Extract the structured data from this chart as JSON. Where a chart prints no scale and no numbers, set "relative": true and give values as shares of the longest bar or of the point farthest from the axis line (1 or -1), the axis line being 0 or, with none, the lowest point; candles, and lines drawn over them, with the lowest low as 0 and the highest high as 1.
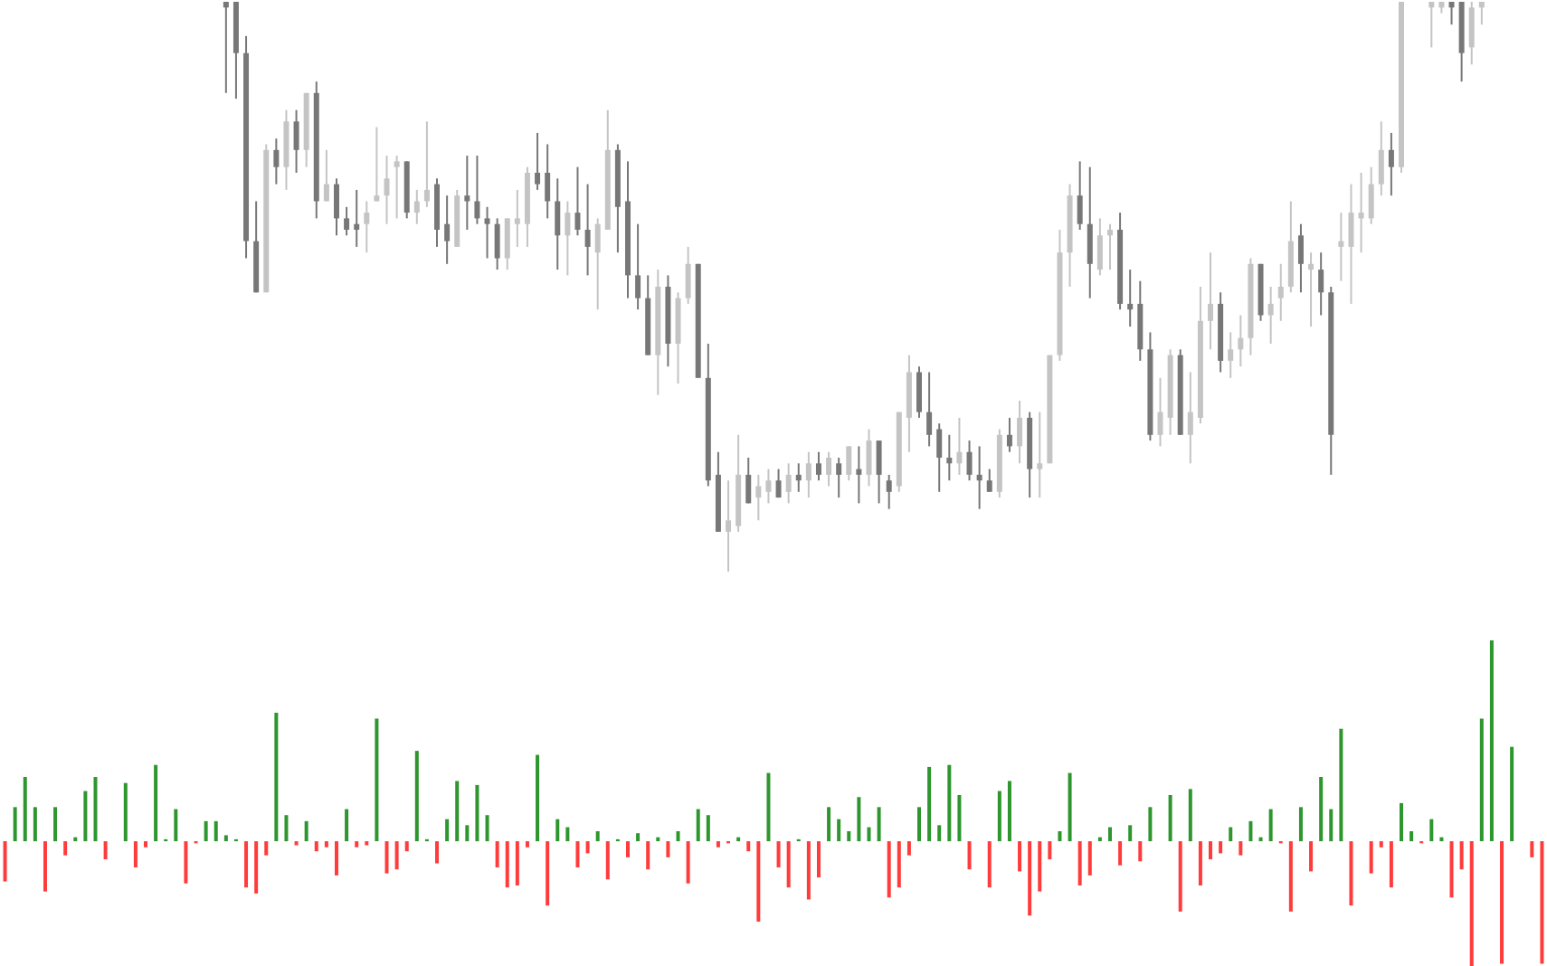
{
  "chart_data": [
    {
      "type": "candlestick",
      "relative": true,
      "categories": [
        null,
        null,
        null,
        null,
        null,
        null,
        null,
        null,
        null,
        null,
        null,
        null,
        null,
        null,
        null,
        null,
        null,
        null,
        null,
        null,
        null,
        null,
        null,
        null,
        null,
        null,
        null,
        null,
        null,
        null,
        null,
        null,
        null,
        null,
        null,
        null,
        null,
        null,
        null,
        null,
        null,
        null,
        null,
        null,
        null,
        null,
        null,
        null,
        null,
        null,
        null,
        null,
        null,
        null,
        null,
        null,
        null,
        null,
        null,
        null,
        null,
        null,
        null,
        null,
        null,
        null,
        null,
        null,
        null,
        null,
        null,
        null,
        null,
        null,
        null,
        null,
        null,
        null,
        null,
        null,
        null,
        null,
        null,
        null,
        null,
        null,
        null,
        null,
        null,
        null,
        null,
        null,
        null,
        null,
        null,
        null,
        null,
        null,
        null,
        null,
        null,
        null,
        null,
        null,
        null,
        null,
        null,
        null,
        null,
        null,
        null,
        null,
        null,
        null,
        null,
        null,
        null,
        null,
        null,
        null,
        null,
        null,
        null,
        null,
        null,
        null,
        null,
        null,
        null,
        null,
        null,
        null,
        null,
        null,
        null,
        null,
        null,
        null,
        null,
        null,
        null,
        null,
        null,
        null,
        null,
        null,
        null,
        null,
        null,
        null,
        null,
        null,
        null,
        null
      ],
      "ohlc": [
        null,
        null,
        null,
        null,
        null,
        null,
        null,
        null,
        null,
        null,
        null,
        null,
        null,
        null,
        null,
        null,
        null,
        null,
        null,
        null,
        null,
        null,
        [
          1,
          1,
          0.84,
          0.99
        ],
        [
          1,
          1,
          0.83,
          0.91
        ],
        [
          0.91,
          0.94,
          0.55,
          0.58
        ],
        [
          0.58,
          0.65,
          0.49,
          0.49
        ],
        [
          0.49,
          0.75,
          0.49,
          0.74
        ],
        [
          0.74,
          0.76,
          0.68,
          0.71
        ],
        [
          0.71,
          0.81,
          0.67,
          0.79
        ],
        [
          0.79,
          0.81,
          0.7,
          0.74
        ],
        [
          0.74,
          0.84,
          0.71,
          0.84
        ],
        [
          0.84,
          0.86,
          0.62,
          0.65
        ],
        [
          0.65,
          0.74,
          0.65,
          0.68
        ],
        [
          0.68,
          0.69,
          0.59,
          0.62
        ],
        [
          0.62,
          0.64,
          0.59,
          0.6
        ],
        [
          0.61,
          0.67,
          0.57,
          0.6
        ],
        [
          0.61,
          0.65,
          0.56,
          0.63
        ],
        [
          0.65,
          0.78,
          0.65,
          0.66
        ],
        [
          0.66,
          0.73,
          0.61,
          0.69
        ],
        [
          0.71,
          0.73,
          0.62,
          0.72
        ],
        [
          0.72,
          0.72,
          0.62,
          0.63
        ],
        [
          0.63,
          0.67,
          0.61,
          0.65
        ],
        [
          0.65,
          0.79,
          0.64,
          0.67
        ],
        [
          0.68,
          0.69,
          0.57,
          0.6
        ],
        [
          0.61,
          0.66,
          0.54,
          0.58
        ],
        [
          0.57,
          0.67,
          0.57,
          0.66
        ],
        [
          0.66,
          0.73,
          0.6,
          0.65
        ],
        [
          0.65,
          0.73,
          0.61,
          0.62
        ],
        [
          0.62,
          0.64,
          0.55,
          0.61
        ],
        [
          0.61,
          0.62,
          0.53,
          0.55
        ],
        [
          0.55,
          0.62,
          0.53,
          0.62
        ],
        [
          0.61,
          0.67,
          0.57,
          0.62
        ],
        [
          0.61,
          0.71,
          0.57,
          0.7
        ],
        [
          0.7,
          0.77,
          0.67,
          0.68
        ],
        [
          0.7,
          0.75,
          0.62,
          0.65
        ],
        [
          0.65,
          0.69,
          0.53,
          0.59
        ],
        [
          0.59,
          0.65,
          0.52,
          0.63
        ],
        [
          0.63,
          0.71,
          0.59,
          0.6
        ],
        [
          0.6,
          0.68,
          0.52,
          0.57
        ],
        [
          0.56,
          0.62,
          0.46,
          0.61
        ],
        [
          0.6,
          0.81,
          0.6,
          0.74
        ],
        [
          0.74,
          0.75,
          0.56,
          0.64
        ],
        [
          0.65,
          0.72,
          0.48,
          0.52
        ],
        [
          0.52,
          0.61,
          0.46,
          0.48
        ],
        [
          0.48,
          0.52,
          0.38,
          0.38
        ],
        [
          0.38,
          0.53,
          0.31,
          0.5
        ],
        [
          0.5,
          0.52,
          0.36,
          0.4
        ],
        [
          0.4,
          0.49,
          0.33,
          0.48
        ],
        [
          0.48,
          0.57,
          0.47,
          0.54
        ],
        [
          0.54,
          0.54,
          0.34,
          0.34
        ],
        [
          0.34,
          0.4,
          0.15,
          0.16
        ],
        [
          0.17,
          0.21,
          0.07,
          0.07
        ],
        [
          0.07,
          0.16,
          0,
          0.09
        ],
        [
          0.08,
          0.24,
          0.07,
          0.17
        ],
        [
          0.17,
          0.2,
          0.12,
          0.12
        ],
        [
          0.13,
          0.17,
          0.09,
          0.15
        ],
        [
          0.14,
          0.18,
          0.12,
          0.16
        ],
        [
          0.16,
          0.18,
          0.13,
          0.13
        ],
        [
          0.14,
          0.19,
          0.12,
          0.17
        ],
        [
          0.17,
          0.19,
          0.14,
          0.16
        ],
        [
          0.16,
          0.21,
          0.13,
          0.19
        ],
        [
          0.19,
          0.21,
          0.16,
          0.17
        ],
        [
          0.17,
          0.21,
          0.15,
          0.2
        ],
        [
          0.19,
          0.2,
          0.13,
          0.17
        ],
        [
          0.17,
          0.22,
          0.16,
          0.22
        ],
        [
          0.18,
          0.22,
          0.12,
          0.17
        ],
        [
          0.17,
          0.25,
          0.15,
          0.23
        ],
        [
          0.23,
          0.23,
          0.12,
          0.17
        ],
        [
          0.16,
          0.17,
          0.11,
          0.14
        ],
        [
          0.15,
          0.28,
          0.14,
          0.28
        ],
        [
          0.27,
          0.38,
          0.21,
          0.35
        ],
        [
          0.35,
          0.36,
          0.27,
          0.28
        ],
        [
          0.28,
          0.35,
          0.22,
          0.24
        ],
        [
          0.25,
          0.26,
          0.14,
          0.2
        ],
        [
          0.2,
          0.24,
          0.16,
          0.19
        ],
        [
          0.19,
          0.27,
          0.17,
          0.21
        ],
        [
          0.21,
          0.23,
          0.16,
          0.17
        ],
        [
          0.17,
          0.22,
          0.11,
          0.16
        ],
        [
          0.16,
          0.18,
          0.14,
          0.14
        ],
        [
          0.14,
          0.25,
          0.13,
          0.24
        ],
        [
          0.24,
          0.27,
          0.21,
          0.22
        ],
        [
          0.22,
          0.3,
          0.19,
          0.27
        ],
        [
          0.27,
          0.28,
          0.13,
          0.18
        ],
        [
          0.18,
          0.28,
          0.13,
          0.19
        ],
        [
          0.19,
          0.38,
          0.19,
          0.38
        ],
        [
          0.38,
          0.6,
          0.37,
          0.56
        ],
        [
          0.56,
          0.68,
          0.5,
          0.66
        ],
        [
          0.66,
          0.72,
          0.6,
          0.61
        ],
        [
          0.61,
          0.71,
          0.48,
          0.54
        ],
        [
          0.53,
          0.62,
          0.52,
          0.59
        ],
        [
          0.59,
          0.61,
          0.53,
          0.6
        ],
        [
          0.6,
          0.63,
          0.46,
          0.47
        ],
        [
          0.47,
          0.53,
          0.43,
          0.46
        ],
        [
          0.47,
          0.51,
          0.37,
          0.39
        ],
        [
          0.39,
          0.42,
          0.23,
          0.24
        ],
        [
          0.24,
          0.34,
          0.22,
          0.28
        ],
        [
          0.27,
          0.39,
          0.24,
          0.38
        ],
        [
          0.38,
          0.39,
          0.24,
          0.24
        ],
        [
          0.24,
          0.35,
          0.19,
          0.28
        ],
        [
          0.27,
          0.5,
          0.26,
          0.44
        ],
        [
          0.44,
          0.56,
          0.39,
          0.47
        ],
        [
          0.47,
          0.49,
          0.35,
          0.37
        ],
        [
          0.37,
          0.42,
          0.34,
          0.39
        ],
        [
          0.39,
          0.45,
          0.36,
          0.41
        ],
        [
          0.41,
          0.55,
          0.38,
          0.54
        ],
        [
          0.54,
          0.54,
          0.44,
          0.45
        ],
        [
          0.45,
          0.5,
          0.4,
          0.47
        ],
        [
          0.48,
          0.54,
          0.44,
          0.5
        ],
        [
          0.5,
          0.65,
          0.49,
          0.58
        ],
        [
          0.59,
          0.61,
          0.49,
          0.54
        ],
        [
          0.53,
          0.56,
          0.43,
          0.54
        ],
        [
          0.53,
          0.56,
          0.45,
          0.49
        ],
        [
          0.49,
          0.5,
          0.17,
          0.24
        ],
        [
          0.57,
          0.63,
          0.51,
          0.58
        ],
        [
          0.57,
          0.68,
          0.47,
          0.63
        ],
        [
          0.62,
          0.7,
          0.56,
          0.63
        ],
        [
          0.62,
          0.71,
          0.61,
          0.68
        ],
        [
          0.68,
          0.79,
          0.66,
          0.74
        ],
        [
          0.74,
          0.77,
          0.66,
          0.71
        ],
        [
          0.71,
          1,
          0.7,
          1
        ],
        null,
        null,
        [
          0.99,
          1,
          0.92,
          1
        ],
        [
          0.99,
          1,
          0.98,
          1
        ],
        [
          1,
          1,
          0.96,
          0.99
        ],
        [
          1,
          1,
          0.86,
          0.91
        ],
        [
          0.92,
          1,
          0.89,
          0.99
        ],
        [
          0.99,
          1,
          0.96,
          1
        ],
        null,
        null,
        null,
        null,
        null,
        null
      ],
      "colors": [
        null,
        null,
        null,
        null,
        null,
        null,
        null,
        null,
        null,
        null,
        null,
        null,
        null,
        null,
        null,
        null,
        null,
        null,
        null,
        null,
        null,
        null,
        "#777777",
        "#777777",
        "#777777",
        "#777777",
        "#c4c4c4",
        "#777777",
        "#c4c4c4",
        "#777777",
        "#c4c4c4",
        "#777777",
        "#c4c4c4",
        "#777777",
        "#777777",
        "#777777",
        "#c4c4c4",
        "#c4c4c4",
        "#c4c4c4",
        "#c4c4c4",
        "#777777",
        "#c4c4c4",
        "#c4c4c4",
        "#777777",
        "#777777",
        "#c4c4c4",
        "#777777",
        "#777777",
        "#777777",
        "#777777",
        "#c4c4c4",
        "#c4c4c4",
        "#c4c4c4",
        "#777777",
        "#777777",
        "#777777",
        "#c4c4c4",
        "#777777",
        "#777777",
        "#c4c4c4",
        "#c4c4c4",
        "#777777",
        "#777777",
        "#777777",
        "#777777",
        "#c4c4c4",
        "#777777",
        "#c4c4c4",
        "#c4c4c4",
        "#777777",
        "#777777",
        "#777777",
        "#c4c4c4",
        "#c4c4c4",
        "#777777",
        "#c4c4c4",
        "#c4c4c4",
        "#777777",
        "#c4c4c4",
        "#777777",
        "#c4c4c4",
        "#777777",
        "#c4c4c4",
        "#777777",
        "#c4c4c4",
        "#777777",
        "#c4c4c4",
        "#777777",
        "#777777",
        "#c4c4c4",
        "#c4c4c4",
        "#777777",
        "#777777",
        "#777777",
        "#777777",
        "#c4c4c4",
        "#777777",
        "#777777",
        "#777777",
        "#c4c4c4",
        "#777777",
        "#c4c4c4",
        "#777777",
        "#c4c4c4",
        "#c4c4c4",
        "#c4c4c4",
        "#c4c4c4",
        "#777777",
        "#777777",
        "#c4c4c4",
        "#c4c4c4",
        "#777777",
        "#777777",
        "#777777",
        "#777777",
        "#c4c4c4",
        "#c4c4c4",
        "#777777",
        "#c4c4c4",
        "#c4c4c4",
        "#c4c4c4",
        "#777777",
        "#c4c4c4",
        "#c4c4c4",
        "#c4c4c4",
        "#777777",
        "#c4c4c4",
        "#c4c4c4",
        "#c4c4c4",
        "#777777",
        "#c4c4c4",
        "#777777",
        "#777777",
        "#c4c4c4",
        "#c4c4c4",
        "#c4c4c4",
        "#c4c4c4",
        "#c4c4c4",
        "#777777",
        "#c4c4c4",
        null,
        null,
        "#c4c4c4",
        "#c4c4c4",
        "#777777",
        "#777777",
        "#c4c4c4",
        "#c4c4c4",
        null,
        null,
        null,
        null,
        null,
        null
      ]
    },
    {
      "type": "bar",
      "relative": true,
      "categories": [
        null,
        null,
        null,
        null,
        null,
        null,
        null,
        null,
        null,
        null,
        null,
        null,
        null,
        null,
        null,
        null,
        null,
        null,
        null,
        null,
        null,
        null,
        null,
        null,
        null,
        null,
        null,
        null,
        null,
        null,
        null,
        null,
        null,
        null,
        null,
        null,
        null,
        null,
        null,
        null,
        null,
        null,
        null,
        null,
        null,
        null,
        null,
        null,
        null,
        null,
        null,
        null,
        null,
        null,
        null,
        null,
        null,
        null,
        null,
        null,
        null,
        null,
        null,
        null,
        null,
        null,
        null,
        null,
        null,
        null,
        null,
        null,
        null,
        null,
        null,
        null,
        null,
        null,
        null,
        null,
        null,
        null,
        null,
        null,
        null,
        null,
        null,
        null,
        null,
        null,
        null,
        null,
        null,
        null,
        null,
        null,
        null,
        null,
        null,
        null,
        null,
        null,
        null,
        null,
        null,
        null,
        null,
        null,
        null,
        null,
        null,
        null,
        null,
        null,
        null,
        null,
        null,
        null,
        null,
        null,
        null,
        null,
        null,
        null,
        null,
        null,
        null,
        null,
        null,
        null,
        null,
        null,
        null,
        null,
        null,
        null,
        null,
        null,
        null,
        null,
        null,
        null,
        null,
        null,
        null,
        null,
        null,
        null,
        null,
        null,
        null,
        null,
        null,
        null
      ],
      "series": [
        {
          "color": "#2e962e",
          "values": [
            null,
            0.17,
            0.32,
            0.17,
            null,
            0.17,
            null,
            0.02,
            0.25,
            0.32,
            null,
            null,
            0.29,
            null,
            null,
            0.38,
            0.01,
            0.16,
            null,
            null,
            0.1,
            0.1,
            0.03,
            0.01,
            null,
            null,
            null,
            0.64,
            0.13,
            null,
            0.1,
            null,
            null,
            null,
            0.16,
            null,
            null,
            0.61,
            null,
            null,
            null,
            0.45,
            0.01,
            null,
            0.11,
            0.3,
            0.08,
            0.28,
            0.13,
            null,
            null,
            null,
            null,
            0.43,
            null,
            0.11,
            0.07,
            null,
            null,
            0.05,
            null,
            0.01,
            null,
            0.04,
            null,
            0.02,
            null,
            0.05,
            null,
            0.16,
            0.13,
            null,
            null,
            0.02,
            null,
            null,
            0.34,
            null,
            null,
            0.01,
            null,
            null,
            0.17,
            0.11,
            0.05,
            0.22,
            0.07,
            0.17,
            null,
            null,
            null,
            0.17,
            0.37,
            0.08,
            0.38,
            0.23,
            null,
            null,
            null,
            0.25,
            0.3,
            null,
            null,
            null,
            null,
            0.05,
            0.34,
            null,
            null,
            0.02,
            0.07,
            null,
            0.08,
            null,
            0.17,
            null,
            0.23,
            null,
            0.26,
            null,
            null,
            null,
            0.07,
            null,
            0.1,
            0.02,
            0.16,
            null,
            null,
            0.17,
            null,
            0.32,
            0.16,
            0.56,
            null,
            null,
            null,
            null,
            null,
            0.19,
            0.05,
            null,
            0.11,
            0.02,
            null,
            null,
            null,
            0.61,
            1.0,
            null,
            0.47,
            null,
            null,
            null
          ]
        },
        {
          "color": "#ff3b3b",
          "values": [
            -0.2,
            null,
            null,
            null,
            -0.25,
            null,
            -0.07,
            null,
            null,
            null,
            -0.09,
            null,
            null,
            -0.13,
            -0.03,
            null,
            null,
            null,
            -0.21,
            -0.01,
            null,
            null,
            null,
            null,
            -0.23,
            -0.26,
            -0.07,
            null,
            null,
            -0.02,
            null,
            -0.05,
            -0.03,
            -0.17,
            null,
            -0.03,
            -0.02,
            null,
            -0.16,
            -0.14,
            -0.05,
            null,
            null,
            -0.11,
            null,
            null,
            null,
            null,
            null,
            -0.13,
            -0.23,
            -0.22,
            -0.03,
            null,
            -0.32,
            null,
            null,
            -0.13,
            -0.06,
            null,
            -0.19,
            null,
            -0.08,
            null,
            -0.14,
            null,
            -0.08,
            null,
            -0.21,
            null,
            null,
            -0.03,
            -0.01,
            null,
            -0.05,
            -0.4,
            null,
            -0.13,
            -0.23,
            null,
            -0.29,
            -0.18,
            null,
            null,
            null,
            null,
            null,
            null,
            -0.28,
            -0.23,
            -0.07,
            null,
            null,
            null,
            null,
            null,
            -0.14,
            null,
            -0.23,
            null,
            null,
            -0.15,
            -0.37,
            -0.25,
            -0.09,
            null,
            null,
            -0.22,
            -0.17,
            null,
            null,
            -0.12,
            null,
            -0.1,
            null,
            null,
            null,
            -0.35,
            null,
            -0.22,
            -0.09,
            -0.06,
            null,
            -0.07,
            null,
            null,
            null,
            -0.01,
            -0.35,
            null,
            -0.15,
            null,
            null,
            null,
            -0.32,
            null,
            -0.16,
            -0.03,
            -0.23,
            null,
            null,
            -0.01,
            null,
            null,
            -0.28,
            -0.14,
            -0.63,
            null,
            null,
            -0.61,
            null,
            null,
            -0.08,
            -0.61
          ]
        }
      ]
    }
  ]
}
